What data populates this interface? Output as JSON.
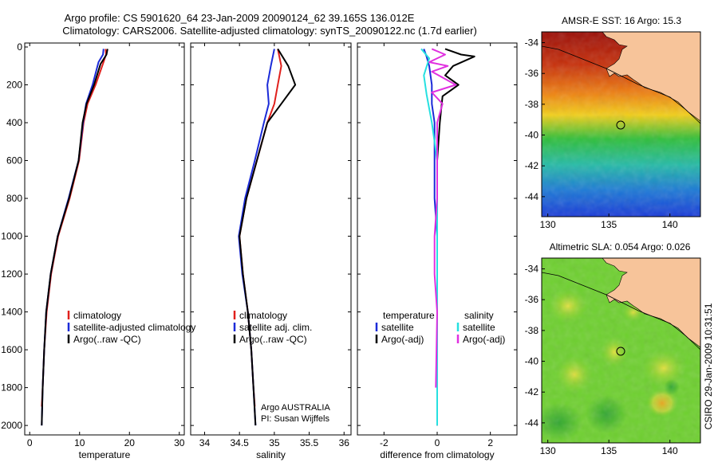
{
  "header": {
    "line1": "Argo profile: CS 5901620_64 23-Jan-2009 20090124_62 39.165S 136.012E",
    "line2": "Climatology: CARS2006. Satellite-adjusted climatology: synTS_20090122.nc (1.7d earlier)"
  },
  "stamp": "CSIRO 29-Jan-2009 10:31:51",
  "colors": {
    "climatology": "#e0201c",
    "satellite": "#1b2bd8",
    "argo": "#000000",
    "satellite_diff_sal": "#26e0e0",
    "argo_diff_sal": "#e030e0"
  },
  "chart_data": [
    {
      "type": "line",
      "xlabel": "temperature",
      "xlim": [
        -1,
        31
      ],
      "ylim": [
        2050,
        0
      ],
      "y_reversed": true,
      "xticks": [
        0,
        10,
        20,
        30
      ],
      "yticks": [
        0,
        200,
        400,
        600,
        800,
        1000,
        1200,
        1400,
        1600,
        1800,
        2000
      ],
      "legend": {
        "placement": "middle-right",
        "entries": [
          "climatology",
          "satellite-adjusted climatology",
          "Argo(..raw -QC)"
        ]
      },
      "series": [
        {
          "name": "climatology",
          "color": "#e0201c",
          "points": [
            [
              15.2,
              10
            ],
            [
              15.3,
              40
            ],
            [
              14.8,
              80
            ],
            [
              13.2,
              200
            ],
            [
              11.6,
              300
            ],
            [
              10.8,
              400
            ],
            [
              9.9,
              600
            ],
            [
              8.0,
              800
            ],
            [
              5.7,
              1000
            ],
            [
              4.3,
              1200
            ],
            [
              3.4,
              1400
            ],
            [
              2.9,
              1600
            ],
            [
              2.6,
              1800
            ],
            [
              2.4,
              1900
            ]
          ]
        },
        {
          "name": "satellite-adjusted climatology",
          "color": "#1b2bd8",
          "points": [
            [
              14.8,
              10
            ],
            [
              14.7,
              40
            ],
            [
              13.8,
              80
            ],
            [
              12.6,
              200
            ],
            [
              11.3,
              300
            ],
            [
              10.7,
              400
            ],
            [
              9.8,
              600
            ],
            [
              7.8,
              800
            ],
            [
              5.6,
              1000
            ],
            [
              4.2,
              1200
            ],
            [
              3.3,
              1400
            ],
            [
              2.9,
              1600
            ],
            [
              2.6,
              1800
            ],
            [
              2.4,
              2000
            ]
          ]
        },
        {
          "name": "Argo(..raw -QC)",
          "color": "#000000",
          "points": [
            [
              15.6,
              10
            ],
            [
              15.4,
              40
            ],
            [
              14.2,
              90
            ],
            [
              12.9,
              200
            ],
            [
              11.4,
              300
            ],
            [
              10.6,
              400
            ],
            [
              9.8,
              600
            ],
            [
              7.9,
              800
            ],
            [
              5.6,
              1000
            ],
            [
              4.2,
              1200
            ],
            [
              3.3,
              1400
            ],
            [
              2.9,
              1600
            ],
            [
              2.6,
              1800
            ],
            [
              2.4,
              2000
            ]
          ]
        }
      ]
    },
    {
      "type": "line",
      "xlabel": "salinity",
      "xlim": [
        33.8,
        36.1
      ],
      "ylim": [
        2050,
        0
      ],
      "y_reversed": true,
      "xticks": [
        34,
        34.5,
        35,
        35.5,
        36
      ],
      "legend": {
        "placement": "middle-right",
        "entries": [
          "climatology",
          "satellite adj. clim.",
          "Argo(..raw -QC)"
        ]
      },
      "annotation": [
        "Argo AUSTRALIA",
        "PI: Susan Wijffels"
      ],
      "series": [
        {
          "name": "climatology",
          "color": "#e0201c",
          "points": [
            [
              35.05,
              10
            ],
            [
              35.1,
              100
            ],
            [
              35.05,
              200
            ],
            [
              35.0,
              300
            ],
            [
              34.9,
              400
            ],
            [
              34.75,
              600
            ],
            [
              34.6,
              800
            ],
            [
              34.5,
              1000
            ],
            [
              34.55,
              1200
            ],
            [
              34.62,
              1400
            ],
            [
              34.67,
              1600
            ],
            [
              34.7,
              1800
            ],
            [
              34.72,
              1900
            ]
          ]
        },
        {
          "name": "satellite adj. clim.",
          "color": "#1b2bd8",
          "points": [
            [
              35.0,
              10
            ],
            [
              34.95,
              100
            ],
            [
              34.9,
              200
            ],
            [
              34.92,
              300
            ],
            [
              34.85,
              400
            ],
            [
              34.72,
              600
            ],
            [
              34.58,
              800
            ],
            [
              34.49,
              1000
            ],
            [
              34.54,
              1200
            ],
            [
              34.62,
              1400
            ],
            [
              34.67,
              1600
            ],
            [
              34.7,
              1800
            ],
            [
              34.73,
              2000
            ]
          ]
        },
        {
          "name": "Argo(..raw -QC)",
          "color": "#000000",
          "points": [
            [
              35.05,
              10
            ],
            [
              35.2,
              100
            ],
            [
              35.3,
              200
            ],
            [
              35.1,
              300
            ],
            [
              34.9,
              400
            ],
            [
              34.75,
              600
            ],
            [
              34.6,
              800
            ],
            [
              34.5,
              1000
            ],
            [
              34.55,
              1200
            ],
            [
              34.62,
              1400
            ],
            [
              34.67,
              1600
            ],
            [
              34.7,
              1800
            ],
            [
              34.73,
              2000
            ]
          ]
        }
      ]
    },
    {
      "type": "line",
      "xlabel": "difference from climatology",
      "xlim": [
        -3,
        3
      ],
      "ylim": [
        2050,
        0
      ],
      "y_reversed": true,
      "xticks": [
        -2,
        0,
        2
      ],
      "legend": {
        "placement": "middle",
        "groups": [
          {
            "title": "temperature",
            "entries": [
              "satellite",
              "Argo(-adj)"
            ]
          },
          {
            "title": "salinity",
            "entries": [
              "satellite",
              "Argo(-adj)"
            ]
          }
        ]
      },
      "series": [
        {
          "name": "temperature satellite",
          "color": "#1b2bd8",
          "points": [
            [
              -0.5,
              10
            ],
            [
              -0.4,
              50
            ],
            [
              -0.3,
              100
            ],
            [
              -0.2,
              200
            ],
            [
              -0.2,
              300
            ],
            [
              -0.1,
              400
            ],
            [
              -0.1,
              600
            ],
            [
              -0.1,
              800
            ],
            [
              0,
              1000
            ],
            [
              0,
              1200
            ],
            [
              0,
              1400
            ],
            [
              0,
              1600
            ],
            [
              0,
              1800
            ],
            [
              0,
              2000
            ]
          ]
        },
        {
          "name": "temperature Argo(-adj)",
          "color": "#000000",
          "points": [
            [
              0.3,
              10
            ],
            [
              0.9,
              40
            ],
            [
              1.4,
              50
            ],
            [
              0.6,
              100
            ],
            [
              0.3,
              150
            ],
            [
              0.8,
              200
            ],
            [
              0.2,
              260
            ],
            [
              0.1,
              400
            ],
            [
              0,
              600
            ],
            [
              0,
              800
            ],
            [
              0,
              1000
            ],
            [
              0,
              1400
            ],
            [
              0,
              1800
            ],
            [
              0,
              2000
            ]
          ]
        },
        {
          "name": "salinity satellite",
          "color": "#26e0e0",
          "points": [
            [
              -0.6,
              10
            ],
            [
              -0.3,
              60
            ],
            [
              -0.5,
              150
            ],
            [
              -0.4,
              250
            ],
            [
              -0.2,
              400
            ],
            [
              -0.1,
              500
            ],
            [
              0,
              600
            ],
            [
              0,
              800
            ],
            [
              0,
              1000
            ],
            [
              0,
              1400
            ],
            [
              0,
              1800
            ],
            [
              0,
              2000
            ]
          ]
        },
        {
          "name": "salinity Argo(-adj)",
          "color": "#e030e0",
          "points": [
            [
              -0.2,
              10
            ],
            [
              0.3,
              40
            ],
            [
              -0.3,
              80
            ],
            [
              0.4,
              100
            ],
            [
              -0.2,
              130
            ],
            [
              0.7,
              200
            ],
            [
              -0.2,
              240
            ],
            [
              0.2,
              300
            ],
            [
              0,
              400
            ],
            [
              0,
              800
            ],
            [
              -0.1,
              1000
            ],
            [
              -0.1,
              1200
            ],
            [
              0,
              1400
            ],
            [
              -0.05,
              1800
            ]
          ]
        }
      ]
    },
    {
      "type": "heatmap",
      "title": "AMSR-E SST: 16 Argo: 15.3",
      "xticks": [
        130,
        135,
        140
      ],
      "yticks": [
        -34,
        -36,
        -38,
        -40,
        -42,
        -44
      ],
      "xlim": [
        129.5,
        142.5
      ],
      "ylim": [
        -45.3,
        -33.3
      ],
      "field": "sea surface temperature, warm in north (dark red) to cool in south (blue)",
      "argo_position": [
        136.0,
        -39.2
      ]
    },
    {
      "type": "heatmap",
      "title": "Altimetric SLA: 0.054 Argo: 0.026",
      "xticks": [
        130,
        135,
        140
      ],
      "yticks": [
        -34,
        -36,
        -38,
        -40,
        -42,
        -44
      ],
      "xlim": [
        129.5,
        142.5
      ],
      "ylim": [
        -45.3,
        -33.3
      ],
      "field": "sea level anomaly, mostly green with yellow patches",
      "argo_position": [
        136.0,
        -39.2
      ]
    }
  ]
}
